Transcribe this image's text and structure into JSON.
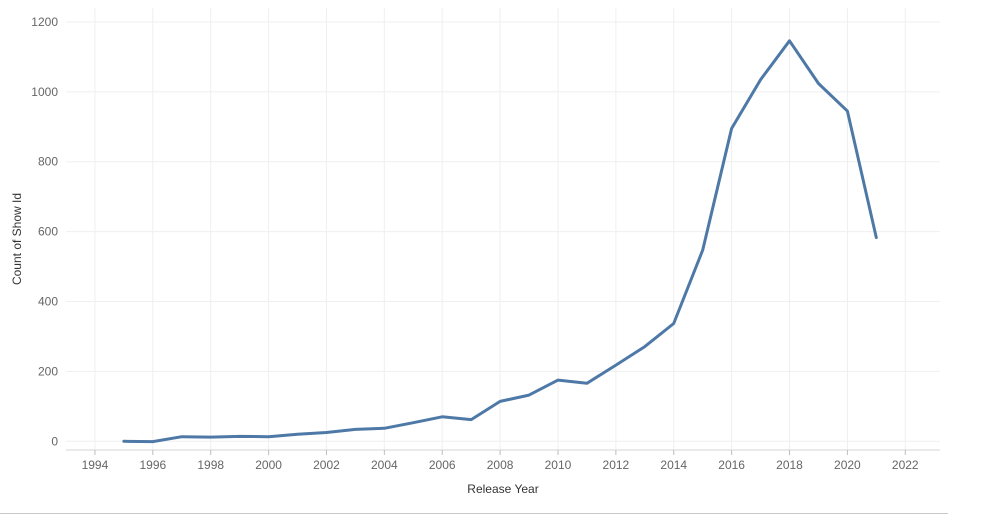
{
  "chart_data": {
    "type": "line",
    "xlabel": "Release Year",
    "ylabel": "Count of Show Id",
    "xlim": [
      1993,
      2023.2
    ],
    "ylim": [
      -25,
      1240
    ],
    "x_ticks": [
      1994,
      1996,
      1998,
      2000,
      2002,
      2004,
      2006,
      2008,
      2010,
      2012,
      2014,
      2016,
      2018,
      2020,
      2022
    ],
    "y_ticks": [
      0,
      200,
      400,
      600,
      800,
      1000,
      1200
    ],
    "grid": true,
    "line_color": "#4e79a7",
    "series": [
      {
        "x": [
          1995,
          1996,
          1997,
          1998,
          1999,
          2000,
          2001,
          2002,
          2003,
          2004,
          2005,
          2006,
          2007,
          2008,
          2009,
          2010,
          2011,
          2012,
          2013,
          2014,
          2015,
          2016,
          2017,
          2018,
          2019,
          2020,
          2021
        ],
        "values": [
          0,
          -1,
          13,
          12,
          14,
          13,
          20,
          25,
          34,
          37,
          53,
          70,
          62,
          114,
          132,
          175,
          166,
          218,
          271,
          337,
          547,
          895,
          1035,
          1146,
          1024,
          945,
          583
        ]
      }
    ]
  }
}
